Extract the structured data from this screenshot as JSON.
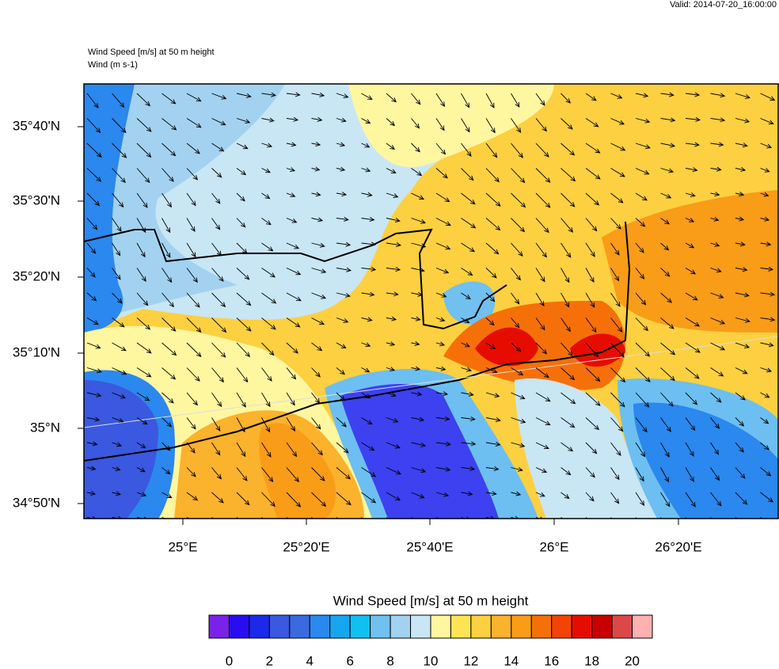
{
  "valid": "Valid: 2014-07-20_16:00:00",
  "header": {
    "line1": "Wind Speed [m/s] at 50 m height",
    "line2": "Wind   (m s-1)"
  },
  "map": {
    "lat_labels": [
      "35°40'N",
      "35°30'N",
      "35°20'N",
      "35°10'N",
      "35°N",
      "34°50'N"
    ],
    "lon_labels": [
      "25°E",
      "25°20'E",
      "25°40'E",
      "26°E",
      "26°20'E"
    ]
  },
  "colorbar": {
    "title": "Wind Speed [m/s] at 50 m height",
    "colors": [
      "#7a22e8",
      "#2a0cf0",
      "#1a2ae8",
      "#3a58e0",
      "#3a6ae0",
      "#2a88ee",
      "#16a6f0",
      "#10c0f2",
      "#70c0f0",
      "#a2d2f0",
      "#c8e6f4",
      "#fff6a0",
      "#fde454",
      "#fcd040",
      "#fbb22c",
      "#f99c18",
      "#f6700a",
      "#f24406",
      "#e60d00",
      "#c80000",
      "#dc4848",
      "#ffb0b0"
    ],
    "ticks": [
      0,
      2,
      4,
      6,
      8,
      10,
      12,
      14,
      16,
      18,
      20
    ]
  }
}
